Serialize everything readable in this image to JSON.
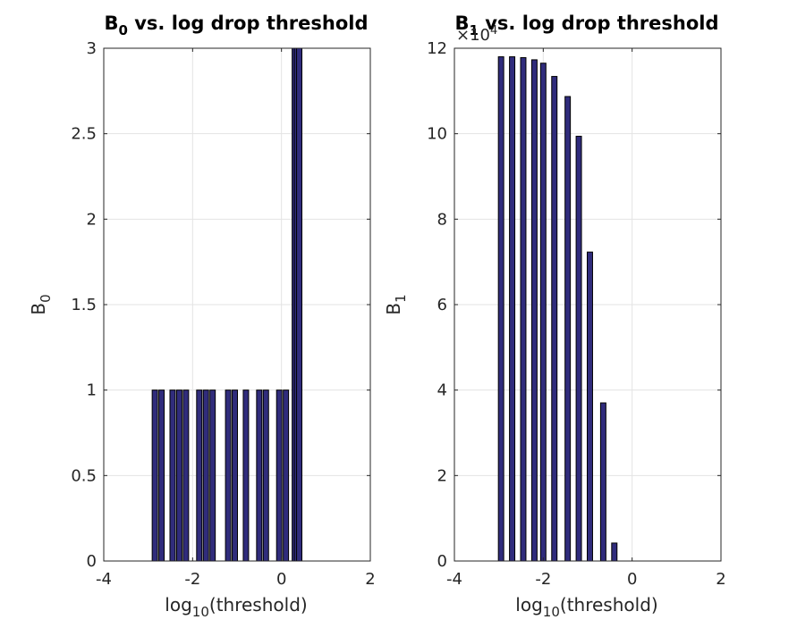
{
  "chart_data": [
    {
      "type": "bar",
      "title": {
        "main": "B",
        "sub": "0",
        "rest": " vs. log drop threshold"
      },
      "xlabel": {
        "main": "log",
        "sub": "10",
        "rest": "(threshold)"
      },
      "ylabel": {
        "main": "B",
        "sub": "0"
      },
      "xlim": [
        -4,
        2
      ],
      "ylim": [
        0,
        3
      ],
      "xticks": [
        -4,
        -2,
        0,
        2
      ],
      "yticks": [
        0,
        0.5,
        1,
        1.5,
        2,
        2.5,
        3
      ],
      "ytick_labels": [
        "0",
        "0.5",
        "1",
        "1.5",
        "2",
        "2.5",
        "3"
      ],
      "exponent": null,
      "grid": true,
      "bar_color": "#302c7c",
      "x": [
        -2.85,
        -2.7,
        -2.45,
        -2.3,
        -2.15,
        -1.85,
        -1.7,
        -1.55,
        -1.2,
        -1.05,
        -0.8,
        -0.5,
        -0.35,
        -0.05,
        0.1,
        0.3,
        0.35,
        0.4
      ],
      "values": [
        1,
        1,
        1,
        1,
        1,
        1,
        1,
        1,
        1,
        1,
        1,
        1,
        1,
        1,
        1,
        3,
        3,
        3
      ]
    },
    {
      "type": "bar",
      "title": {
        "main": "B",
        "sub": "1",
        "rest": " vs. log drop threshold"
      },
      "xlabel": {
        "main": "log",
        "sub": "10",
        "rest": "(threshold)"
      },
      "ylabel": {
        "main": "B",
        "sub": "1"
      },
      "xlim": [
        -4,
        2
      ],
      "ylim": [
        0,
        120000
      ],
      "xticks": [
        -4,
        -2,
        0,
        2
      ],
      "yticks": [
        0,
        20000,
        40000,
        60000,
        80000,
        100000,
        120000
      ],
      "ytick_labels": [
        "0",
        "2",
        "4",
        "6",
        "8",
        "10",
        "12"
      ],
      "exponent": {
        "base": "×10",
        "power": "4"
      },
      "grid": true,
      "bar_color": "#302c7c",
      "x": [
        -2.95,
        -2.7,
        -2.45,
        -2.2,
        -2.0,
        -1.75,
        -1.45,
        -1.2,
        -0.95,
        -0.65,
        -0.4,
        -0.05,
        0.1,
        0.3
      ],
      "values": [
        118000,
        118000,
        117800,
        117300,
        116500,
        113400,
        108700,
        99400,
        72300,
        37000,
        4200,
        0,
        0,
        0
      ]
    }
  ]
}
